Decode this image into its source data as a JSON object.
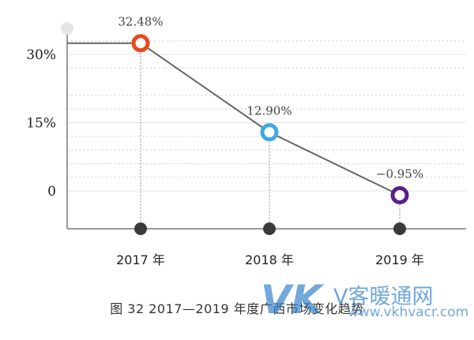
{
  "chart_data": {
    "type": "line",
    "title": "",
    "xlabel": "",
    "ylabel": "",
    "categories": [
      "2017 年",
      "2018 年",
      "2019 年"
    ],
    "series": [
      {
        "values": [
          32.48,
          12.9,
          -0.95
        ],
        "data_labels": [
          "32.48%",
          "12.90%",
          "−0.95%"
        ],
        "marker_colors": [
          "#e8491d",
          "#3fa9e0",
          "#5b1f8c"
        ]
      }
    ],
    "yticks": [
      {
        "value": 30,
        "label": "30%"
      },
      {
        "value": 15,
        "label": "15%"
      },
      {
        "value": 0,
        "label": "0"
      }
    ],
    "ylim": [
      -8,
      38
    ],
    "grid": true,
    "line_color": "#666666"
  },
  "caption": "图 32 2017—2019 年度广西市场变化趋势",
  "watermark": {
    "letters": "VK",
    "name": "V客暖通网",
    "url": "www.vkhvacr.com"
  }
}
